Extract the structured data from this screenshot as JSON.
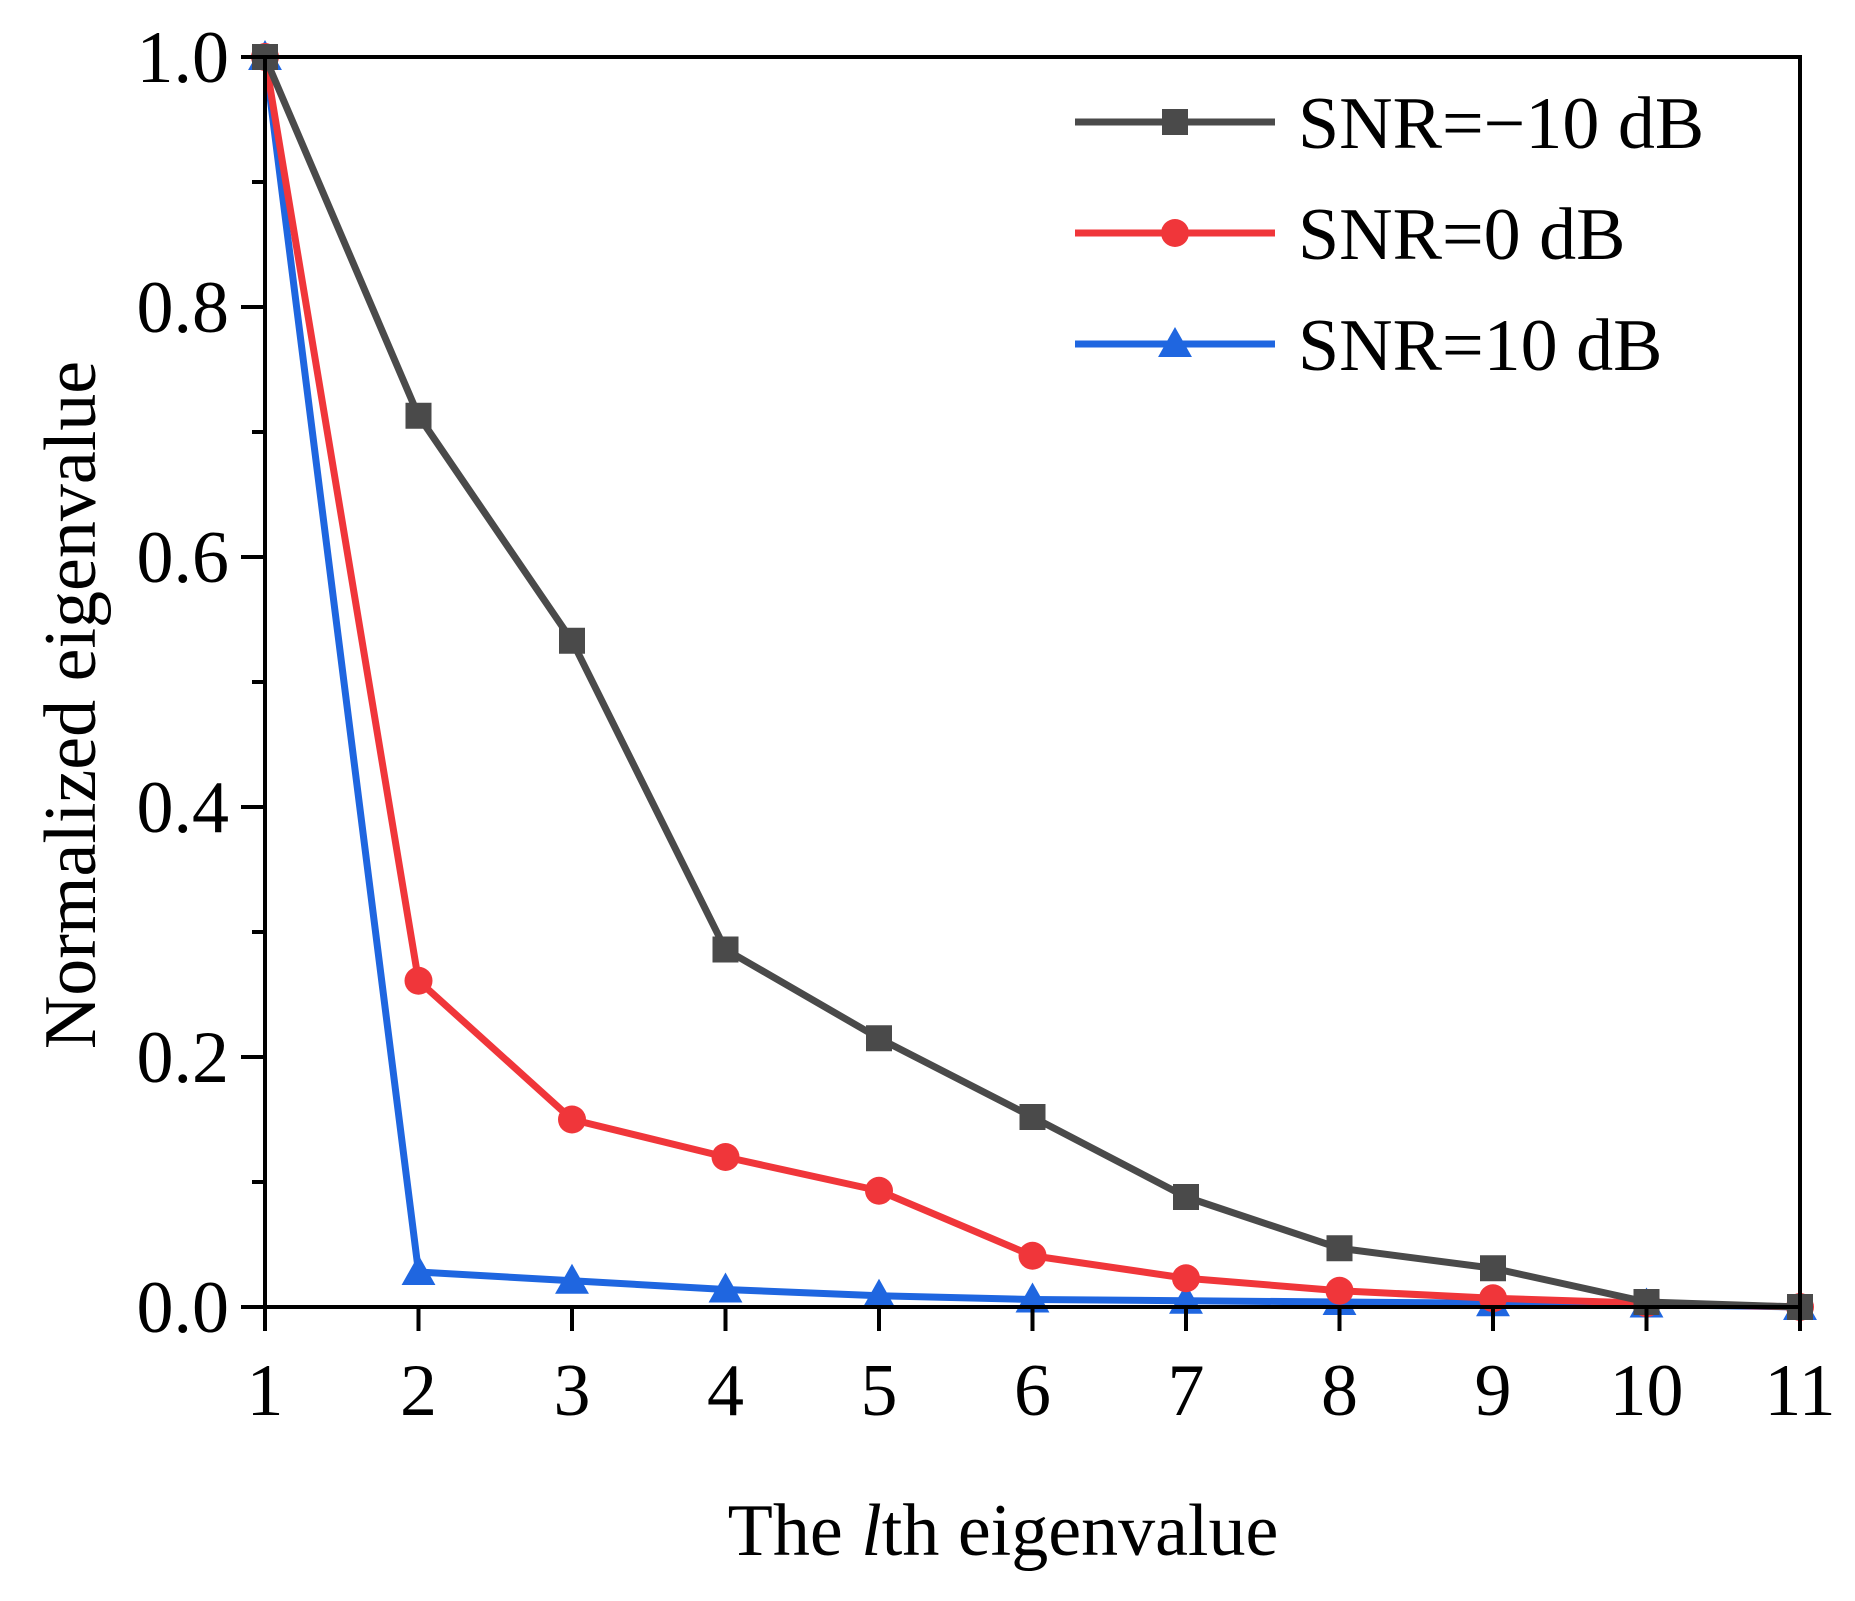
{
  "chart_data": {
    "type": "line",
    "xlabel_parts": {
      "prefix": "The ",
      "italic": "l",
      "suffix": "th eigenvalue"
    },
    "ylabel": "Normalized eigenvalue",
    "xlim": [
      1,
      11
    ],
    "ylim": [
      0,
      1.0
    ],
    "x_ticks": [
      "1",
      "2",
      "3",
      "4",
      "5",
      "6",
      "7",
      "8",
      "9",
      "10",
      "11"
    ],
    "y_ticks": [
      "0.0",
      "0.2",
      "0.4",
      "0.6",
      "0.8",
      "1.0"
    ],
    "x": [
      1,
      2,
      3,
      4,
      5,
      6,
      7,
      8,
      9,
      10,
      11
    ],
    "series": [
      {
        "name": "SNR=−10 dB",
        "color": "#4a4a4a",
        "marker": "square",
        "values": [
          1.0,
          0.713,
          0.533,
          0.286,
          0.215,
          0.152,
          0.088,
          0.047,
          0.031,
          0.004,
          0.0
        ]
      },
      {
        "name": "SNR=0 dB",
        "color": "#f0363a",
        "marker": "circle",
        "values": [
          1.0,
          0.261,
          0.15,
          0.12,
          0.093,
          0.041,
          0.023,
          0.013,
          0.007,
          0.003,
          0.0
        ]
      },
      {
        "name": "SNR=10 dB",
        "color": "#1f66e0",
        "marker": "triangle",
        "values": [
          1.0,
          0.028,
          0.021,
          0.014,
          0.009,
          0.006,
          0.005,
          0.004,
          0.003,
          0.002,
          0.0
        ]
      }
    ],
    "legend_position": "top-right",
    "grid": false
  }
}
